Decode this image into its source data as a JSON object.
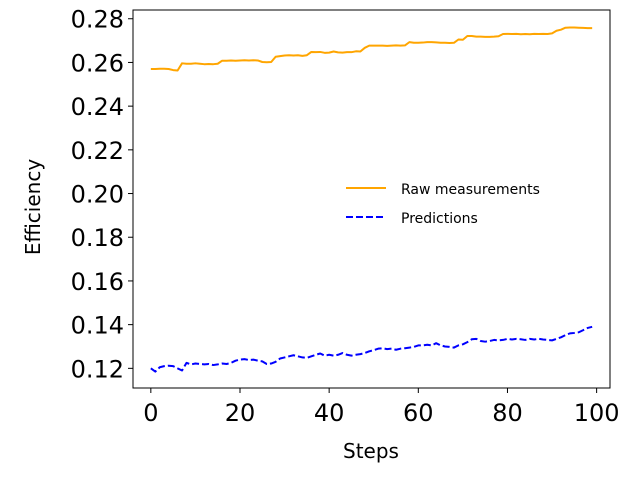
{
  "chart_data": {
    "type": "line",
    "xlabel": "Steps",
    "ylabel": "Efficiency",
    "xlim": [
      -4,
      103
    ],
    "ylim": [
      0.111,
      0.284
    ],
    "x_ticks": [
      0,
      20,
      40,
      60,
      80,
      100
    ],
    "x_tick_labels": [
      "0",
      "20",
      "40",
      "60",
      "80",
      "100"
    ],
    "y_ticks": [
      0.12,
      0.14,
      0.16,
      0.18,
      0.2,
      0.22,
      0.24,
      0.26,
      0.28
    ],
    "y_tick_labels": [
      "0.12",
      "0.14",
      "0.16",
      "0.18",
      "0.20",
      "0.22",
      "0.24",
      "0.26",
      "0.28"
    ],
    "grid": false,
    "legend_position": "center-right",
    "x": [
      0,
      1,
      2,
      3,
      4,
      5,
      6,
      7,
      8,
      9,
      10,
      11,
      12,
      13,
      14,
      15,
      16,
      17,
      18,
      19,
      20,
      21,
      22,
      23,
      24,
      25,
      26,
      27,
      28,
      29,
      30,
      31,
      32,
      33,
      34,
      35,
      36,
      37,
      38,
      39,
      40,
      41,
      42,
      43,
      44,
      45,
      46,
      47,
      48,
      49,
      50,
      51,
      52,
      53,
      54,
      55,
      56,
      57,
      58,
      59,
      60,
      61,
      62,
      63,
      64,
      65,
      66,
      67,
      68,
      69,
      70,
      71,
      72,
      73,
      74,
      75,
      76,
      77,
      78,
      79,
      80,
      81,
      82,
      83,
      84,
      85,
      86,
      87,
      88,
      89,
      90,
      91,
      92,
      93,
      94,
      95,
      96,
      97,
      98,
      99
    ],
    "series": [
      {
        "name": "Raw measurements",
        "color": "#ffa500",
        "style": "solid",
        "values": [
          0.257,
          0.257,
          0.2571,
          0.2571,
          0.257,
          0.2565,
          0.2563,
          0.2596,
          0.2594,
          0.2594,
          0.2596,
          0.2594,
          0.2592,
          0.2593,
          0.2592,
          0.2594,
          0.2608,
          0.2608,
          0.2609,
          0.2608,
          0.2609,
          0.261,
          0.2609,
          0.261,
          0.2609,
          0.2602,
          0.2601,
          0.2602,
          0.2626,
          0.2629,
          0.2632,
          0.2633,
          0.2632,
          0.2633,
          0.263,
          0.2633,
          0.2648,
          0.2647,
          0.2648,
          0.2644,
          0.2645,
          0.265,
          0.2646,
          0.2645,
          0.2647,
          0.2647,
          0.2651,
          0.265,
          0.2667,
          0.2677,
          0.2677,
          0.2677,
          0.2677,
          0.2676,
          0.2677,
          0.2678,
          0.2677,
          0.2678,
          0.2693,
          0.269,
          0.269,
          0.2691,
          0.2693,
          0.2693,
          0.2692,
          0.269,
          0.269,
          0.2689,
          0.269,
          0.2705,
          0.2704,
          0.2721,
          0.2721,
          0.2718,
          0.2718,
          0.2717,
          0.2717,
          0.2718,
          0.272,
          0.273,
          0.2731,
          0.273,
          0.2731,
          0.2729,
          0.273,
          0.2729,
          0.2731,
          0.273,
          0.2731,
          0.273,
          0.2733,
          0.2745,
          0.275,
          0.2759,
          0.276,
          0.276,
          0.2759,
          0.2758,
          0.2757,
          0.2757
        ]
      },
      {
        "name": "Predictions",
        "color": "#0000ff",
        "style": "dashed",
        "values": [
          0.12,
          0.1185,
          0.1205,
          0.121,
          0.1212,
          0.121,
          0.12,
          0.119,
          0.1225,
          0.1218,
          0.1222,
          0.122,
          0.1218,
          0.122,
          0.1215,
          0.1218,
          0.1222,
          0.122,
          0.1225,
          0.1235,
          0.124,
          0.1242,
          0.1238,
          0.124,
          0.1235,
          0.1232,
          0.122,
          0.1222,
          0.123,
          0.1245,
          0.125,
          0.1255,
          0.126,
          0.1255,
          0.125,
          0.1248,
          0.1255,
          0.1262,
          0.1268,
          0.1258,
          0.1262,
          0.1258,
          0.1262,
          0.127,
          0.1262,
          0.1258,
          0.1262,
          0.1265,
          0.127,
          0.1278,
          0.1283,
          0.129,
          0.1292,
          0.1288,
          0.129,
          0.1285,
          0.129,
          0.1292,
          0.1295,
          0.1298,
          0.1305,
          0.1305,
          0.1308,
          0.1305,
          0.1315,
          0.1305,
          0.13,
          0.1298,
          0.1295,
          0.1305,
          0.131,
          0.132,
          0.1333,
          0.1335,
          0.1325,
          0.1322,
          0.1325,
          0.133,
          0.1328,
          0.133,
          0.1335,
          0.1332,
          0.1335,
          0.1333,
          0.133,
          0.1335,
          0.1332,
          0.1335,
          0.1332,
          0.133,
          0.1328,
          0.1335,
          0.1342,
          0.1352,
          0.136,
          0.1362,
          0.1365,
          0.1375,
          0.1385,
          0.139
        ]
      }
    ]
  }
}
